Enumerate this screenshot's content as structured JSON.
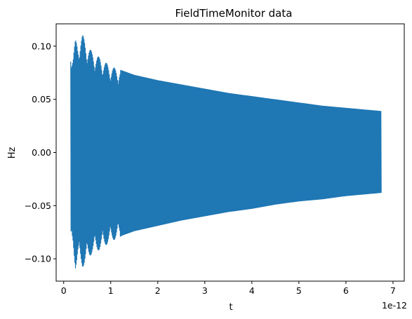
{
  "chart_data": {
    "type": "line",
    "title": "FieldTimeMonitor data",
    "xlabel": "t",
    "ylabel": "Hz",
    "x_offset_text": "1e-12",
    "xlim": [
      -0.16,
      7.24
    ],
    "ylim": [
      -0.121,
      0.121
    ],
    "xticks": [
      0,
      1,
      2,
      3,
      4,
      5,
      6,
      7
    ],
    "xtick_labels": [
      "0",
      "1",
      "2",
      "3",
      "4",
      "5",
      "6",
      "7"
    ],
    "yticks": [
      0.1,
      0.05,
      0.0,
      -0.05,
      -0.1
    ],
    "ytick_labels": [
      "0.10",
      "0.05",
      "0.00",
      "−0.05",
      "−0.10"
    ],
    "grid": false,
    "series": [
      {
        "color": "#1f77b4",
        "x_start": 0.15,
        "x_end": 6.75,
        "envelope_x": [
          0.15,
          0.2,
          0.25,
          0.3,
          0.4,
          0.5,
          0.6,
          0.75,
          1.0,
          1.25,
          1.5,
          2.0,
          2.5,
          3.0,
          3.5,
          4.0,
          4.5,
          5.0,
          5.5,
          6.0,
          6.5,
          6.75
        ],
        "envelope_upper": [
          0.098,
          0.092,
          0.106,
          0.103,
          0.111,
          0.101,
          0.095,
          0.09,
          0.081,
          0.077,
          0.073,
          0.068,
          0.064,
          0.06,
          0.056,
          0.053,
          0.05,
          0.047,
          0.044,
          0.042,
          0.04,
          0.039
        ],
        "envelope_lower": [
          -0.087,
          -0.09,
          -0.109,
          -0.1,
          -0.108,
          -0.102,
          -0.095,
          -0.092,
          -0.084,
          -0.078,
          -0.074,
          -0.069,
          -0.064,
          -0.06,
          -0.056,
          -0.053,
          -0.049,
          -0.046,
          -0.044,
          -0.041,
          -0.039,
          -0.038
        ]
      }
    ]
  }
}
